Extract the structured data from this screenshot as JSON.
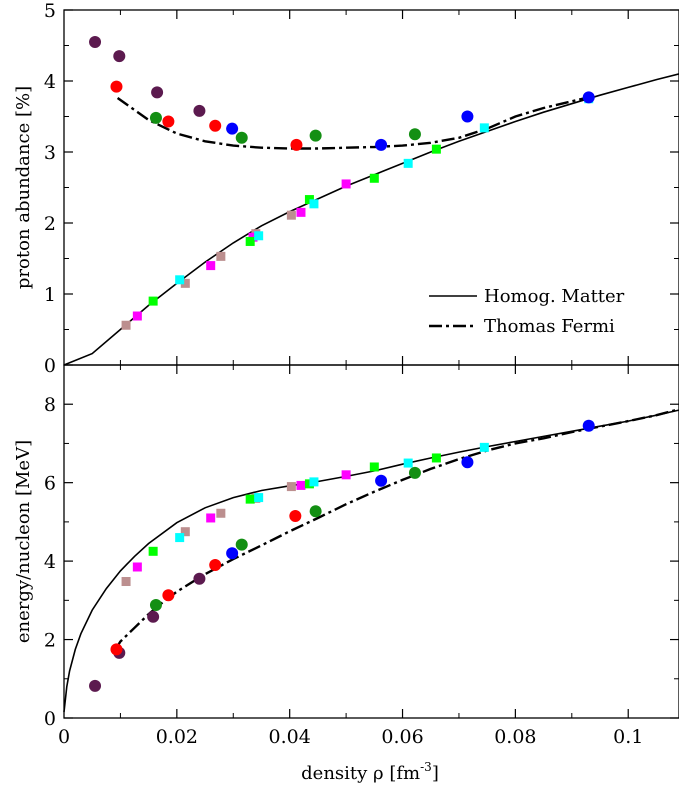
{
  "figure": {
    "xlabel_main": "density ρ [fm",
    "xlabel_sup": "-3",
    "xlabel_close": "]"
  },
  "chart_data": [
    {
      "type": "scatter",
      "panel": "top",
      "ylabel": "proton abundance [%]",
      "xlim": [
        0,
        0.109
      ],
      "ylim": [
        0,
        5
      ],
      "xticks": [
        0,
        0.02,
        0.04,
        0.06,
        0.08,
        0.1
      ],
      "xtick_labels": [
        "0",
        "0.02",
        "0.04",
        "0.06",
        "0.08",
        "0.1"
      ],
      "yticks": [
        0,
        1,
        2,
        3,
        4,
        5
      ],
      "ytick_labels": [
        "0",
        "1",
        "2",
        "3",
        "4",
        "5"
      ],
      "legend": {
        "position": "lower-right",
        "entries": [
          {
            "label": "Homog. Matter",
            "style": "solid"
          },
          {
            "label": "Thomas Fermi",
            "style": "dash-dot"
          }
        ]
      },
      "lines": [
        {
          "name": "Homog. Matter",
          "style": "solid",
          "color": "#000000",
          "x": [
            0,
            0.005,
            0.01,
            0.015,
            0.02,
            0.025,
            0.03,
            0.035,
            0.04,
            0.045,
            0.05,
            0.055,
            0.06,
            0.065,
            0.07,
            0.075,
            0.08,
            0.085,
            0.09,
            0.095,
            0.1,
            0.105,
            0.109
          ],
          "y": [
            0,
            0.16,
            0.5,
            0.84,
            1.15,
            1.45,
            1.72,
            1.96,
            2.16,
            2.34,
            2.52,
            2.68,
            2.84,
            3.0,
            3.15,
            3.29,
            3.43,
            3.56,
            3.68,
            3.8,
            3.91,
            4.02,
            4.1
          ]
        },
        {
          "name": "Thomas Fermi",
          "style": "dash-dot",
          "color": "#000000",
          "x": [
            0.0095,
            0.012,
            0.015,
            0.02,
            0.025,
            0.03,
            0.035,
            0.04,
            0.045,
            0.05,
            0.055,
            0.06,
            0.065,
            0.07,
            0.075,
            0.08,
            0.085,
            0.093
          ],
          "y": [
            3.76,
            3.62,
            3.45,
            3.26,
            3.15,
            3.09,
            3.06,
            3.05,
            3.05,
            3.06,
            3.07,
            3.09,
            3.13,
            3.2,
            3.33,
            3.5,
            3.62,
            3.77
          ]
        }
      ],
      "circles": [
        {
          "color": "#5c1a4f",
          "x": [
            0.0055,
            0.0098,
            0.0165,
            0.024
          ],
          "y": [
            4.55,
            4.35,
            3.84,
            3.58
          ]
        },
        {
          "color": "#ff0000",
          "x": [
            0.0093,
            0.0185,
            0.0268,
            0.0412
          ],
          "y": [
            3.92,
            3.43,
            3.37,
            3.1
          ]
        },
        {
          "color": "#138f13",
          "x": [
            0.0163,
            0.0315,
            0.0446,
            0.0622
          ],
          "y": [
            3.48,
            3.2,
            3.23,
            3.25
          ]
        },
        {
          "color": "#0000ff",
          "x": [
            0.0298,
            0.0562,
            0.0715,
            0.093
          ],
          "y": [
            3.33,
            3.1,
            3.5,
            3.77
          ]
        }
      ],
      "squares": [
        {
          "color": "#bc8f8f",
          "x": [
            0.011,
            0.0215,
            0.0278,
            0.0403,
            0.034
          ],
          "y": [
            0.56,
            1.15,
            1.53,
            2.11,
            1.85
          ]
        },
        {
          "color": "#ff00ff",
          "x": [
            0.013,
            0.026,
            0.0335,
            0.042,
            0.05
          ],
          "y": [
            0.69,
            1.4,
            1.8,
            2.15,
            2.55
          ]
        },
        {
          "color": "#00ff00",
          "x": [
            0.0158,
            0.033,
            0.0435,
            0.055,
            0.066
          ],
          "y": [
            0.9,
            1.74,
            2.33,
            2.63,
            3.04
          ]
        },
        {
          "color": "#00ffff",
          "x": [
            0.0205,
            0.0345,
            0.0443,
            0.061,
            0.0745,
            0.093
          ],
          "y": [
            1.2,
            1.82,
            2.27,
            2.84,
            3.34,
            3.75
          ]
        }
      ]
    },
    {
      "type": "scatter",
      "panel": "bottom",
      "ylabel": "energy/nucleon [MeV]",
      "xlim": [
        0,
        0.109
      ],
      "ylim": [
        0,
        9
      ],
      "xticks": [
        0,
        0.02,
        0.04,
        0.06,
        0.08,
        0.1
      ],
      "xtick_labels": [
        "0",
        "0.02",
        "0.04",
        "0.06",
        "0.08",
        "0.1"
      ],
      "yticks": [
        0,
        2,
        4,
        6,
        8
      ],
      "ytick_labels": [
        "0",
        "2",
        "4",
        "6",
        "8"
      ],
      "lines": [
        {
          "name": "Homog. Matter",
          "style": "solid",
          "color": "#000000",
          "x": [
            0,
            0.0005,
            0.001,
            0.002,
            0.003,
            0.005,
            0.0075,
            0.01,
            0.0125,
            0.015,
            0.02,
            0.025,
            0.03,
            0.035,
            0.04,
            0.045,
            0.05,
            0.055,
            0.06,
            0.065,
            0.07,
            0.075,
            0.08,
            0.085,
            0.09,
            0.095,
            0.1,
            0.105,
            0.109
          ],
          "y": [
            0.15,
            0.8,
            1.2,
            1.75,
            2.15,
            2.75,
            3.3,
            3.75,
            4.12,
            4.45,
            4.98,
            5.36,
            5.62,
            5.8,
            5.92,
            6.03,
            6.16,
            6.3,
            6.47,
            6.63,
            6.78,
            6.92,
            7.05,
            7.18,
            7.31,
            7.44,
            7.57,
            7.72,
            7.85
          ]
        },
        {
          "name": "Thomas Fermi",
          "style": "dash-dot",
          "color": "#000000",
          "x": [
            0.009,
            0.01,
            0.0125,
            0.015,
            0.0175,
            0.02,
            0.025,
            0.03,
            0.035,
            0.04,
            0.045,
            0.05,
            0.055,
            0.06,
            0.065,
            0.07,
            0.075,
            0.08,
            0.085,
            0.09,
            0.095,
            0.1,
            0.105,
            0.109
          ],
          "y": [
            1.72,
            1.95,
            2.3,
            2.65,
            2.95,
            3.22,
            3.67,
            4.05,
            4.4,
            4.76,
            5.1,
            5.45,
            5.77,
            6.07,
            6.35,
            6.6,
            6.82,
            7.0,
            7.13,
            7.29,
            7.43,
            7.57,
            7.72,
            7.87
          ]
        }
      ],
      "circles": [
        {
          "color": "#5c1a4f",
          "x": [
            0.0055,
            0.0098,
            0.0158,
            0.024
          ],
          "y": [
            0.82,
            1.66,
            2.58,
            3.55
          ]
        },
        {
          "color": "#ff0000",
          "x": [
            0.0093,
            0.0185,
            0.0268,
            0.041
          ],
          "y": [
            1.75,
            3.13,
            3.9,
            5.15
          ]
        },
        {
          "color": "#138f13",
          "x": [
            0.0163,
            0.0315,
            0.0446,
            0.0622
          ],
          "y": [
            2.88,
            4.42,
            5.27,
            6.25
          ]
        },
        {
          "color": "#0000ff",
          "x": [
            0.0298,
            0.0562,
            0.0715,
            0.093
          ],
          "y": [
            4.2,
            6.05,
            6.52,
            7.45
          ]
        }
      ],
      "squares": [
        {
          "color": "#bc8f8f",
          "x": [
            0.011,
            0.0215,
            0.0278,
            0.0403,
            0.034
          ],
          "y": [
            3.48,
            4.75,
            5.22,
            5.9,
            5.6
          ]
        },
        {
          "color": "#ff00ff",
          "x": [
            0.013,
            0.026,
            0.042,
            0.05
          ],
          "y": [
            3.85,
            5.1,
            5.93,
            6.2
          ]
        },
        {
          "color": "#00ff00",
          "x": [
            0.0158,
            0.033,
            0.0435,
            0.055,
            0.066
          ],
          "y": [
            4.25,
            5.58,
            5.97,
            6.4,
            6.63
          ]
        },
        {
          "color": "#00ffff",
          "x": [
            0.0205,
            0.0345,
            0.0443,
            0.061,
            0.0745,
            0.093
          ],
          "y": [
            4.6,
            5.62,
            6.02,
            6.5,
            6.9,
            7.45
          ]
        }
      ]
    }
  ]
}
